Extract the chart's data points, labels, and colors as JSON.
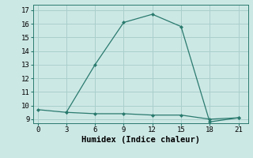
{
  "title": "",
  "xlabel": "Humidex (Indice chaleur)",
  "ylabel": "",
  "line1_x": [
    0,
    3,
    6,
    9,
    12,
    15,
    18,
    21
  ],
  "line1_y": [
    9.7,
    9.5,
    13.0,
    16.1,
    16.7,
    15.8,
    8.8,
    9.1
  ],
  "line2_x": [
    3,
    6,
    9,
    12,
    15,
    18,
    21
  ],
  "line2_y": [
    9.5,
    9.4,
    9.4,
    9.3,
    9.3,
    9.0,
    9.1
  ],
  "line_color": "#2a7a6e",
  "marker": "D",
  "markersize": 2.5,
  "bg_color": "#cce8e5",
  "grid_color": "#aacfcc",
  "xlim": [
    -0.5,
    22
  ],
  "ylim": [
    8.7,
    17.4
  ],
  "xticks": [
    0,
    3,
    6,
    9,
    12,
    15,
    18,
    21
  ],
  "yticks": [
    9,
    10,
    11,
    12,
    13,
    14,
    15,
    16,
    17
  ],
  "tick_fontsize": 6.5,
  "label_fontsize": 7.5
}
